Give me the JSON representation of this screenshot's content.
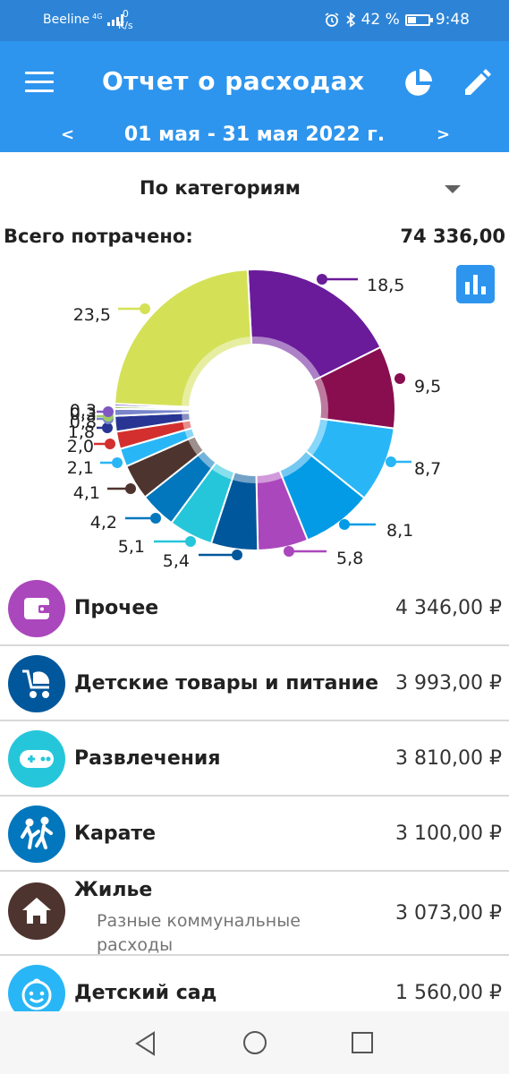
{
  "status_bar": {
    "carrier": "Beeline",
    "network": "4G",
    "speed_value": "0",
    "speed_unit": "K/s",
    "battery": "42 %",
    "battery_level": 0.42,
    "time": "9:48",
    "icons": [
      "alarm-icon",
      "bluetooth-icon",
      "battery-icon"
    ]
  },
  "app_bar": {
    "title": "Отчет о расходах",
    "prev": "<",
    "next": ">",
    "date_range": "01 мая - 31 мая 2022 г.",
    "icons": [
      "menu-icon",
      "pie-chart-icon",
      "edit-icon"
    ]
  },
  "selector": {
    "label": "По категориям"
  },
  "summary": {
    "label": "Всего потрачено:",
    "total": "74 336,00"
  },
  "chart_data": {
    "type": "pie",
    "donut": true,
    "unit": "%",
    "slices": [
      {
        "label": "18,5",
        "value": 18.5,
        "color": "#6a1b9a"
      },
      {
        "label": "9,5",
        "value": 9.5,
        "color": "#880e4f"
      },
      {
        "label": "8,7",
        "value": 8.7,
        "color": "#29b6f6"
      },
      {
        "label": "8,1",
        "value": 8.1,
        "color": "#039be5"
      },
      {
        "label": "5,8",
        "value": 5.8,
        "color": "#ab47bc"
      },
      {
        "label": "5,4",
        "value": 5.4,
        "color": "#01579b"
      },
      {
        "label": "5,1",
        "value": 5.1,
        "color": "#26c6da"
      },
      {
        "label": "4,2",
        "value": 4.2,
        "color": "#0277bd"
      },
      {
        "label": "4,1",
        "value": 4.1,
        "color": "#4e342e"
      },
      {
        "label": "2,1",
        "value": 2.1,
        "color": "#29b6f6"
      },
      {
        "label": "2,0",
        "value": 2.0,
        "color": "#d32f2f"
      },
      {
        "label": "1,8",
        "value": 1.8,
        "color": "#283593"
      },
      {
        "label": "0,8",
        "value": 0.8,
        "color": "#7986cb"
      },
      {
        "label": "0,3",
        "value": 0.3,
        "color": "#9ccc65"
      },
      {
        "label": "0,3",
        "value": 0.3,
        "color": "#7e57c2"
      },
      {
        "label": "23,5",
        "value": 23.5,
        "color": "#d4e157"
      }
    ]
  },
  "categories": [
    {
      "name": "Прочее",
      "amount": "4 346,00 ₽",
      "icon": "wallet-icon",
      "color": "#ab47bc"
    },
    {
      "name": "Детские товары и питание",
      "amount": "3 993,00 ₽",
      "icon": "stroller-icon",
      "color": "#01579b"
    },
    {
      "name": "Развлечения",
      "amount": "3 810,00 ₽",
      "icon": "gamepad-icon",
      "color": "#26c6da"
    },
    {
      "name": "Карате",
      "amount": "3 100,00 ₽",
      "icon": "karate-icon",
      "color": "#0277bd"
    },
    {
      "name": "Жилье",
      "subtitle": "Разные коммунальные расходы",
      "amount": "3 073,00 ₽",
      "icon": "home-icon",
      "color": "#4e342e"
    },
    {
      "name": "Детский сад",
      "amount": "1 560,00 ₽",
      "icon": "baby-face-icon",
      "color": "#29b6f6"
    }
  ],
  "nav_bar": {
    "icons": [
      "back-icon",
      "home-nav-icon",
      "recent-apps-icon"
    ]
  }
}
